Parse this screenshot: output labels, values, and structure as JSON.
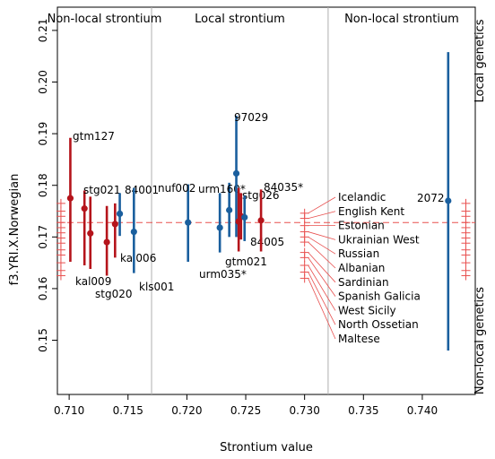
{
  "chart_data": {
    "type": "scatter",
    "title": "",
    "xlabel": "Strontium value",
    "ylabel": "f3.YRI.X.Norwegian",
    "xlim": [
      0.709,
      0.7445
    ],
    "ylim": [
      0.1395,
      0.2145
    ],
    "x_ticks": [
      "0.710",
      "0.715",
      "0.720",
      "0.725",
      "0.730",
      "0.735",
      "0.740"
    ],
    "y_ticks": [
      "0.15",
      "0.16",
      "0.17",
      "0.18",
      "0.19",
      "0.20",
      "0.21"
    ],
    "x_tick_values": [
      0.71,
      0.715,
      0.72,
      0.725,
      0.73,
      0.735,
      0.74
    ],
    "y_tick_values": [
      0.15,
      0.16,
      0.17,
      0.18,
      0.19,
      0.2,
      0.21
    ],
    "region_labels": [
      "Non-local strontium",
      "Local strontium",
      "Non-local strontium"
    ],
    "region_boundaries": [
      0.717,
      0.732
    ],
    "side_labels": {
      "top": "Local genetics",
      "bottom": "Non-local genetics"
    },
    "reference_line_y": 0.1728,
    "colors": {
      "local_genetics": "#1a5f9e",
      "nonlocal_genetics": "#b5141b",
      "reference": "#e8504f",
      "boundary": "#b0b0b0"
    },
    "points": [
      {
        "label": "gtm127",
        "x": 0.7101,
        "y": 0.1775,
        "lo": 0.1652,
        "hi": 0.1892,
        "group": "nonlocal"
      },
      {
        "label": "stg021",
        "x": 0.7113,
        "y": 0.1755,
        "lo": 0.1645,
        "hi": 0.179,
        "group": "nonlocal"
      },
      {
        "label": "kal009",
        "x": 0.7118,
        "y": 0.1707,
        "lo": 0.1638,
        "hi": 0.1778,
        "group": "nonlocal"
      },
      {
        "label": "stg020",
        "x": 0.7132,
        "y": 0.169,
        "lo": 0.1625,
        "hi": 0.176,
        "group": "nonlocal"
      },
      {
        "label": "kal006",
        "x": 0.7139,
        "y": 0.1725,
        "lo": 0.166,
        "hi": 0.1765,
        "group": "nonlocal"
      },
      {
        "label": "84001",
        "x": 0.7143,
        "y": 0.1745,
        "lo": 0.1702,
        "hi": 0.1785,
        "group": "local"
      },
      {
        "label": "kls001",
        "x": 0.7155,
        "y": 0.171,
        "lo": 0.163,
        "hi": 0.1795,
        "group": "local"
      },
      {
        "label": "nuf002",
        "x": 0.7201,
        "y": 0.1728,
        "lo": 0.1652,
        "hi": 0.1802,
        "group": "local"
      },
      {
        "label": "urm035*",
        "x": 0.7228,
        "y": 0.1718,
        "lo": 0.167,
        "hi": 0.1785,
        "group": "local"
      },
      {
        "label": "urm160*",
        "x": 0.7236,
        "y": 0.1752,
        "lo": 0.17,
        "hi": 0.1805,
        "group": "local"
      },
      {
        "label": "97029",
        "x": 0.7242,
        "y": 0.1823,
        "lo": 0.17,
        "hi": 0.1935,
        "group": "local"
      },
      {
        "label": "gtm021",
        "x": 0.7244,
        "y": 0.173,
        "lo": 0.1672,
        "hi": 0.1795,
        "group": "nonlocal"
      },
      {
        "label": "stg026",
        "x": 0.7246,
        "y": 0.174,
        "lo": 0.1695,
        "hi": 0.1785,
        "group": "nonlocal"
      },
      {
        "label": "84005",
        "x": 0.7249,
        "y": 0.1738,
        "lo": 0.1692,
        "hi": 0.178,
        "group": "local"
      },
      {
        "label": "84035*",
        "x": 0.7263,
        "y": 0.1732,
        "lo": 0.1672,
        "hi": 0.1792,
        "group": "nonlocal"
      },
      {
        "label": "2072",
        "x": 0.7422,
        "y": 0.177,
        "lo": 0.148,
        "hi": 0.2058,
        "group": "local"
      }
    ],
    "populations": [
      {
        "label": "Icelandic",
        "y": 0.1746
      },
      {
        "label": "English Kent",
        "y": 0.1736
      },
      {
        "label": "Estonian",
        "y": 0.1722
      },
      {
        "label": "Ukrainian West",
        "y": 0.171
      },
      {
        "label": "Russian",
        "y": 0.17
      },
      {
        "label": "Albanian",
        "y": 0.169
      },
      {
        "label": "Sardinian",
        "y": 0.167
      },
      {
        "label": "Spanish Galicia",
        "y": 0.166
      },
      {
        "label": "West Sicily",
        "y": 0.1645
      },
      {
        "label": "North Ossetian",
        "y": 0.1632
      },
      {
        "label": "Maltese",
        "y": 0.162
      }
    ],
    "population_x": 0.73,
    "edge_marker_x": [
      0.7093,
      0.7437
    ],
    "edge_marker_y": [
      0.1765,
      0.175,
      0.174,
      0.1728,
      0.1718,
      0.1708,
      0.1698,
      0.1688,
      0.1675,
      0.1665,
      0.165,
      0.1635,
      0.1625
    ]
  }
}
